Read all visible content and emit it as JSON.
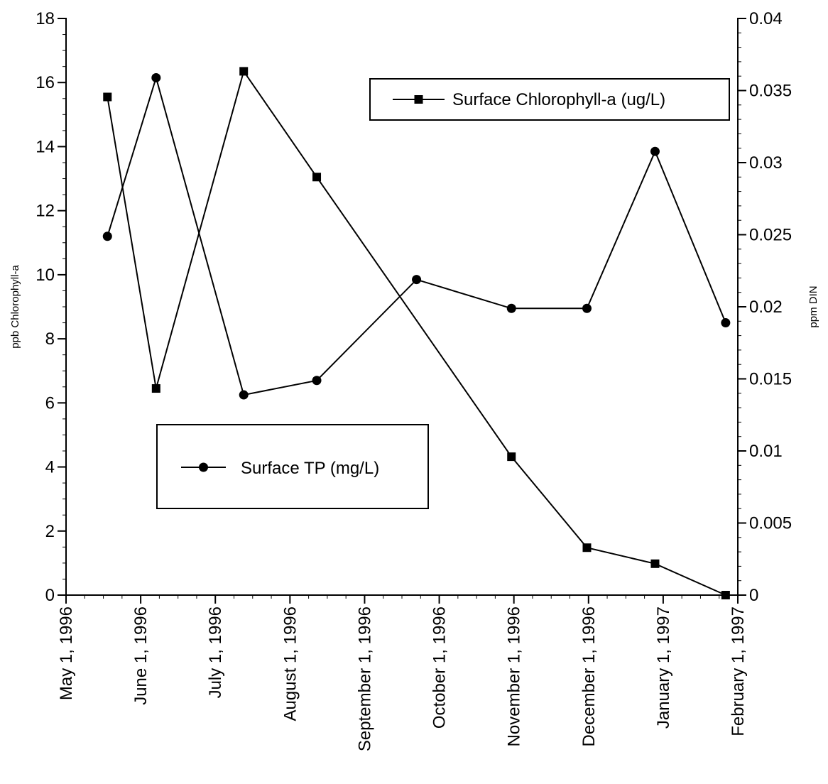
{
  "chart_data": {
    "type": "line",
    "title": "",
    "x_label": "",
    "x_tick_labels": [
      "May 1, 1996",
      "June 1, 1996",
      "July 1, 1996",
      "August 1, 1996",
      "September 1, 1996",
      "October 1, 1996",
      "November 1, 1996",
      "December 1, 1996",
      "January 1, 1997",
      "February 1, 1997"
    ],
    "x_range": [
      "1996-05-01",
      "1997-02-01"
    ],
    "y_left": {
      "label": "ppb Chlorophyll-a",
      "range": [
        0,
        18
      ],
      "ticks": [
        "0",
        "2",
        "4",
        "6",
        "8",
        "10",
        "12",
        "14",
        "16",
        "18"
      ]
    },
    "y_right": {
      "label": "ppm DIN",
      "range": [
        0,
        0.04
      ],
      "ticks": [
        "0",
        "0.005",
        "0.01",
        "0.015",
        "0.02",
        "0.025",
        "0.03",
        "0.035",
        "0.04"
      ]
    },
    "grid": false,
    "series": [
      {
        "name": "Surface Chlorophyll-a (ug/L)",
        "marker": "square",
        "axis": "left",
        "color": "#000000",
        "x": [
          "1996-05-18",
          "1996-06-07",
          "1996-07-13",
          "1996-08-12",
          "1996-10-31",
          "1996-12-01",
          "1996-12-29",
          "1997-01-27"
        ],
        "y": [
          15.55,
          6.45,
          16.35,
          13.05,
          4.32,
          1.48,
          0.98,
          0.0
        ]
      },
      {
        "name": "Surface TP (mg/L)",
        "marker": "circle",
        "axis": "left",
        "color": "#000000",
        "x": [
          "1996-05-18",
          "1996-06-07",
          "1996-07-13",
          "1996-08-12",
          "1996-09-22",
          "1996-10-31",
          "1996-12-01",
          "1996-12-29",
          "1997-01-27"
        ],
        "y": [
          11.2,
          16.15,
          6.25,
          6.7,
          9.85,
          8.95,
          8.95,
          13.85,
          8.5
        ]
      }
    ],
    "legends": [
      {
        "series": "Surface Chlorophyll-a (ug/L)",
        "placement": "upper-right"
      },
      {
        "series": "Surface TP (mg/L)",
        "placement": "middle-left"
      }
    ]
  }
}
